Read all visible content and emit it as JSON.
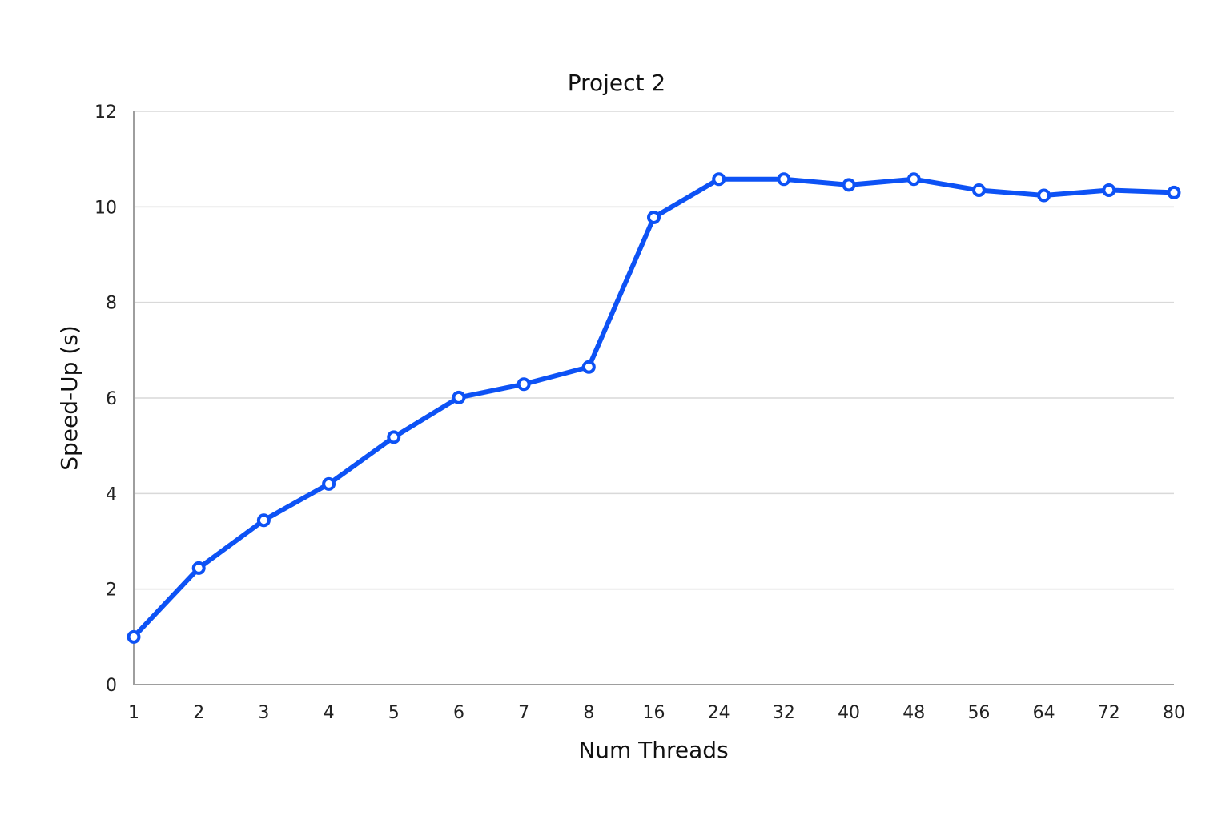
{
  "chart_data": {
    "type": "line",
    "title": "Project 2",
    "xlabel": "Num Threads",
    "ylabel": "Speed-Up (s)",
    "categories": [
      "1",
      "2",
      "3",
      "4",
      "5",
      "6",
      "7",
      "8",
      "16",
      "24",
      "32",
      "40",
      "48",
      "56",
      "64",
      "72",
      "80"
    ],
    "series": [
      {
        "values": [
          1.0,
          2.44,
          3.44,
          4.2,
          5.18,
          6.01,
          6.29,
          6.65,
          9.78,
          10.58,
          10.58,
          10.46,
          10.58,
          10.35,
          10.24,
          10.35,
          10.3
        ]
      }
    ],
    "ylim": [
      0,
      12
    ],
    "yticks": [
      0,
      2,
      4,
      6,
      8,
      10,
      12
    ],
    "grid": true,
    "legend": "none",
    "colors": {
      "line": "#0d52f5",
      "marker_fill": "#ffffff",
      "gridline": "#d9d9d9",
      "axis": "#9e9e9e"
    }
  }
}
